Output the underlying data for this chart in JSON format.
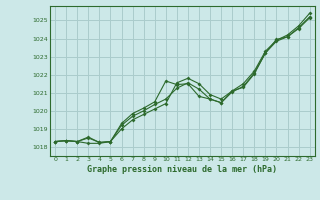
{
  "title": "Graphe pression niveau de la mer (hPa)",
  "background_color": "#cce8e8",
  "grid_color": "#aacccc",
  "line_color": "#2d6a2d",
  "xlim": [
    -0.5,
    23.5
  ],
  "ylim": [
    1017.5,
    1025.8
  ],
  "xticks": [
    0,
    1,
    2,
    3,
    4,
    5,
    6,
    7,
    8,
    9,
    10,
    11,
    12,
    13,
    14,
    15,
    16,
    17,
    18,
    19,
    20,
    21,
    22,
    23
  ],
  "yticks": [
    1018,
    1019,
    1020,
    1021,
    1022,
    1023,
    1024,
    1025
  ],
  "series1_x": [
    0,
    1,
    2,
    3,
    4,
    5,
    6,
    7,
    8,
    9,
    10,
    11,
    12,
    13,
    14,
    15,
    16,
    17,
    18,
    19,
    20,
    21,
    22,
    23
  ],
  "series1_y": [
    1018.3,
    1018.35,
    1018.3,
    1018.5,
    1018.25,
    1018.3,
    1019.0,
    1019.5,
    1019.8,
    1020.1,
    1020.4,
    1021.55,
    1021.8,
    1021.5,
    1020.9,
    1020.65,
    1021.1,
    1021.5,
    1022.2,
    1023.3,
    1023.9,
    1024.2,
    1024.7,
    1025.4
  ],
  "series2_x": [
    0,
    1,
    2,
    3,
    4,
    5,
    6,
    7,
    8,
    9,
    10,
    11,
    12,
    13,
    14,
    15,
    16,
    17,
    18,
    19,
    20,
    21,
    22,
    23
  ],
  "series2_y": [
    1018.3,
    1018.35,
    1018.3,
    1018.55,
    1018.25,
    1018.3,
    1019.2,
    1019.7,
    1020.0,
    1020.35,
    1020.65,
    1021.25,
    1021.55,
    1021.2,
    1020.65,
    1020.45,
    1021.05,
    1021.35,
    1022.1,
    1023.2,
    1023.85,
    1024.1,
    1024.6,
    1025.2
  ],
  "series3_x": [
    0,
    1,
    2,
    3,
    4,
    5,
    6,
    7,
    8,
    9,
    10,
    11,
    12,
    13,
    14,
    15,
    16,
    17,
    18,
    19,
    20,
    21,
    22,
    23
  ],
  "series3_y": [
    1018.3,
    1018.35,
    1018.3,
    1018.2,
    1018.2,
    1018.3,
    1019.3,
    1019.85,
    1020.15,
    1020.5,
    1021.65,
    1021.45,
    1021.5,
    1020.8,
    1020.65,
    1020.45,
    1021.1,
    1021.3,
    1022.05,
    1023.2,
    1023.95,
    1024.1,
    1024.55,
    1025.15
  ]
}
